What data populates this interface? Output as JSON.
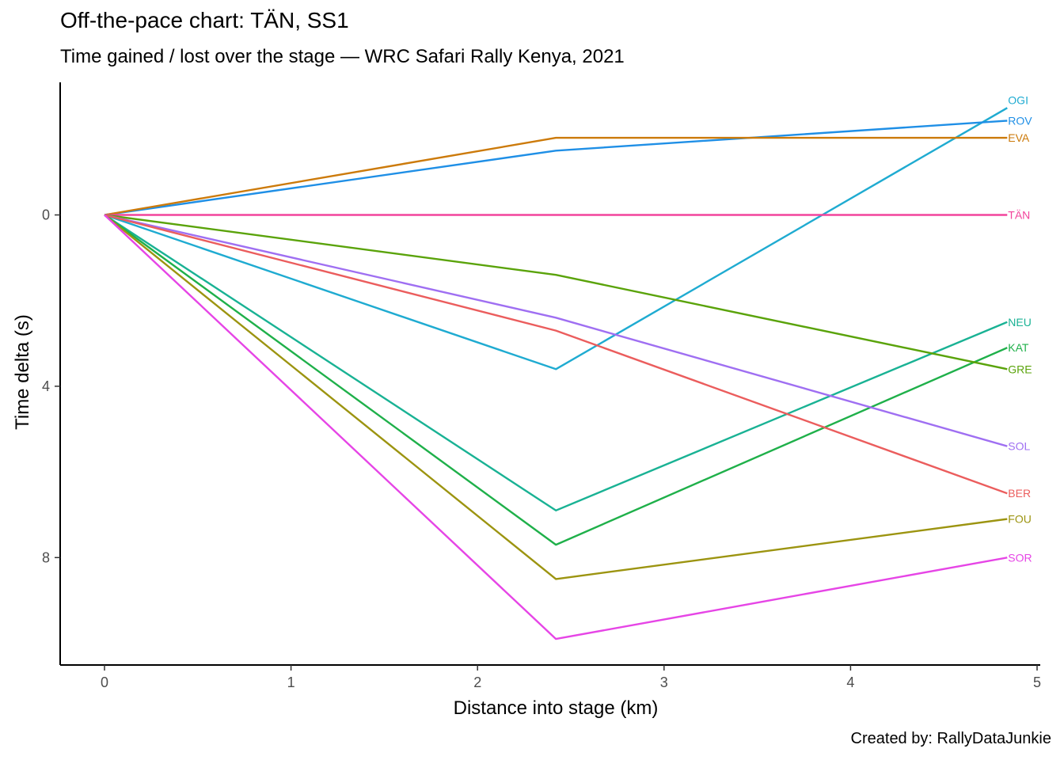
{
  "chart_data": {
    "type": "line",
    "title": "Off-the-pace chart: TÄN, SS1",
    "subtitle": "Time gained / lost over the stage — WRC Safari Rally Kenya, 2021",
    "caption": "Created by: RallyDataJunkie",
    "xlabel": "Distance into stage (km)",
    "ylabel": "Time delta (s)",
    "xlim": [
      0,
      5
    ],
    "ylim": [
      -2.5,
      10.5
    ],
    "y_reversed": true,
    "xticks": [
      0,
      1,
      2,
      3,
      4,
      5
    ],
    "yticks": [
      0,
      4,
      8
    ],
    "grid": false,
    "legend": "none",
    "x": [
      0,
      2.42,
      4.84
    ],
    "series": [
      {
        "name": "OGI",
        "values": [
          0,
          3.6,
          -2.5
        ],
        "color": "#1fabd1"
      },
      {
        "name": "ROV",
        "values": [
          0,
          -1.5,
          -2.2
        ],
        "color": "#1f8fe6"
      },
      {
        "name": "EVA",
        "values": [
          0,
          -1.8,
          -1.8
        ],
        "color": "#cc7a0a"
      },
      {
        "name": "TÄN",
        "values": [
          0,
          0,
          0
        ],
        "color": "#f2449c"
      },
      {
        "name": "NEU",
        "values": [
          0,
          6.9,
          2.5
        ],
        "color": "#19b294"
      },
      {
        "name": "KAT",
        "values": [
          0,
          7.7,
          3.1
        ],
        "color": "#1fb04a"
      },
      {
        "name": "GRE",
        "values": [
          0,
          1.4,
          3.6
        ],
        "color": "#5aa30a"
      },
      {
        "name": "SOL",
        "values": [
          0,
          2.4,
          5.4
        ],
        "color": "#9f6ff2"
      },
      {
        "name": "BER",
        "values": [
          0,
          2.7,
          6.5
        ],
        "color": "#eb5d5d"
      },
      {
        "name": "FOU",
        "values": [
          0,
          8.5,
          7.1
        ],
        "color": "#9c9410"
      },
      {
        "name": "SOR",
        "values": [
          0,
          9.9,
          8.0
        ],
        "color": "#e645e6"
      }
    ]
  }
}
